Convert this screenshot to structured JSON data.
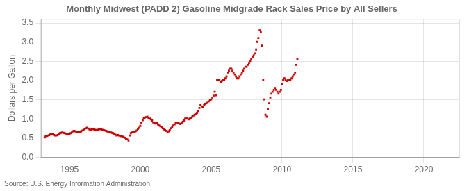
{
  "chart_data": {
    "type": "scatter",
    "title": "Monthly Midwest (PADD 2) Gasoline Midgrade Rack Sales Price by All Sellers",
    "y_label": "Dollars per Gallon",
    "source": "Source: U.S. Energy Information Administration",
    "color": "#cc0000",
    "marker": "square",
    "grid": true,
    "xlim": [
      1993.0,
      2022.5
    ],
    "ylim": [
      0.0,
      3.6
    ],
    "xticks": [
      1995,
      2000,
      2005,
      2010,
      2015,
      2020
    ],
    "yticks": [
      {
        "value": 0.0,
        "label": "0.0"
      },
      0.5,
      {
        "value": 1.0,
        "label": "1.0"
      },
      1.5,
      {
        "value": 2.0,
        "label": "2.0"
      },
      2.5,
      {
        "value": 3.0,
        "label": "3.0"
      },
      3.5
    ],
    "x": [
      1993.25,
      1993.33,
      1993.42,
      1993.5,
      1993.58,
      1993.67,
      1993.75,
      1993.83,
      1993.92,
      1994.0,
      1994.08,
      1994.17,
      1994.25,
      1994.33,
      1994.42,
      1994.5,
      1994.58,
      1994.67,
      1994.75,
      1994.83,
      1994.92,
      1995.0,
      1995.08,
      1995.17,
      1995.25,
      1995.33,
      1995.42,
      1995.5,
      1995.58,
      1995.67,
      1995.75,
      1995.83,
      1995.92,
      1996.0,
      1996.08,
      1996.17,
      1996.25,
      1996.33,
      1996.42,
      1996.5,
      1996.58,
      1996.67,
      1996.75,
      1996.83,
      1996.92,
      1997.0,
      1997.08,
      1997.17,
      1997.25,
      1997.33,
      1997.42,
      1997.5,
      1997.58,
      1997.67,
      1997.75,
      1997.83,
      1997.92,
      1998.0,
      1998.08,
      1998.17,
      1998.25,
      1998.33,
      1998.42,
      1998.5,
      1998.58,
      1998.67,
      1998.75,
      1998.83,
      1998.92,
      1999.0,
      1999.08,
      1999.17,
      1999.25,
      1999.33,
      1999.42,
      1999.5,
      1999.58,
      1999.67,
      1999.75,
      1999.83,
      1999.92,
      2000.0,
      2000.08,
      2000.17,
      2000.25,
      2000.33,
      2000.42,
      2000.5,
      2000.58,
      2000.67,
      2000.75,
      2000.83,
      2000.92,
      2001.0,
      2001.08,
      2001.17,
      2001.25,
      2001.33,
      2001.42,
      2001.5,
      2001.58,
      2001.67,
      2001.75,
      2001.83,
      2001.92,
      2002.0,
      2002.08,
      2002.17,
      2002.25,
      2002.33,
      2002.42,
      2002.5,
      2002.58,
      2002.67,
      2002.75,
      2002.83,
      2002.92,
      2003.0,
      2003.08,
      2003.17,
      2003.25,
      2003.33,
      2003.42,
      2003.5,
      2003.58,
      2003.67,
      2003.75,
      2003.83,
      2003.92,
      2004.0,
      2004.08,
      2004.17,
      2004.25,
      2004.33,
      2004.42,
      2004.5,
      2004.58,
      2004.67,
      2004.75,
      2004.83,
      2004.92,
      2005.0,
      2005.08,
      2005.17,
      2005.25,
      2005.33,
      2005.42,
      2005.5,
      2005.58,
      2005.67,
      2005.75,
      2005.83,
      2005.92,
      2006.0,
      2006.08,
      2006.17,
      2006.25,
      2006.33,
      2006.42,
      2006.5,
      2006.58,
      2006.67,
      2006.75,
      2006.83,
      2006.92,
      2007.0,
      2007.08,
      2007.17,
      2007.25,
      2007.33,
      2007.42,
      2007.5,
      2007.58,
      2007.67,
      2007.75,
      2007.83,
      2007.92,
      2008.0,
      2008.08,
      2008.17,
      2008.25,
      2008.33,
      2008.42,
      2008.5,
      2008.58,
      2008.67,
      2008.75,
      2008.83,
      2008.92,
      2009.0,
      2009.08,
      2009.17,
      2009.25,
      2009.33,
      2009.42,
      2009.5,
      2009.58,
      2009.67,
      2009.75,
      2009.83,
      2009.92,
      2010.0,
      2010.08,
      2010.17,
      2010.25,
      2010.33,
      2010.42,
      2010.5,
      2010.58,
      2010.67,
      2010.75,
      2010.83,
      2010.92,
      2011.0,
      2011.08
    ],
    "values": [
      0.52,
      0.55,
      0.56,
      0.57,
      0.58,
      0.6,
      0.61,
      0.6,
      0.58,
      0.57,
      0.57,
      0.58,
      0.6,
      0.63,
      0.64,
      0.65,
      0.64,
      0.63,
      0.62,
      0.61,
      0.6,
      0.61,
      0.63,
      0.65,
      0.68,
      0.69,
      0.68,
      0.67,
      0.66,
      0.65,
      0.66,
      0.68,
      0.7,
      0.72,
      0.74,
      0.76,
      0.77,
      0.75,
      0.73,
      0.72,
      0.73,
      0.74,
      0.73,
      0.72,
      0.71,
      0.72,
      0.73,
      0.74,
      0.73,
      0.72,
      0.71,
      0.7,
      0.69,
      0.68,
      0.67,
      0.66,
      0.65,
      0.64,
      0.63,
      0.61,
      0.59,
      0.57,
      0.58,
      0.57,
      0.56,
      0.55,
      0.54,
      0.53,
      0.51,
      0.49,
      0.47,
      0.44,
      0.57,
      0.63,
      0.65,
      0.66,
      0.67,
      0.68,
      0.7,
      0.74,
      0.77,
      0.82,
      0.9,
      0.97,
      1.02,
      1.04,
      1.05,
      1.06,
      1.03,
      1.01,
      0.99,
      0.96,
      0.91,
      0.89,
      0.88,
      0.89,
      0.86,
      0.83,
      0.81,
      0.79,
      0.76,
      0.73,
      0.71,
      0.69,
      0.67,
      0.68,
      0.71,
      0.76,
      0.79,
      0.83,
      0.86,
      0.89,
      0.91,
      0.89,
      0.88,
      0.87,
      0.89,
      0.93,
      0.96,
      1.01,
      1.03,
      1.01,
      0.99,
      1.01,
      1.03,
      1.06,
      1.09,
      1.11,
      1.13,
      1.16,
      1.21,
      1.29,
      1.36,
      1.33,
      1.31,
      1.36,
      1.39,
      1.41,
      1.43,
      1.46,
      1.49,
      1.51,
      1.56,
      1.61,
      1.71,
      1.62,
      2.01,
      2.01,
      2.01,
      1.96,
      1.99,
      2.01,
      2.01,
      2.06,
      2.11,
      2.21,
      2.26,
      2.31,
      2.31,
      2.26,
      2.21,
      2.16,
      2.11,
      2.06,
      2.06,
      2.11,
      2.16,
      2.21,
      2.26,
      2.31,
      2.36,
      2.36,
      2.41,
      2.46,
      2.51,
      2.56,
      2.61,
      2.66,
      2.71,
      2.81,
      3.01,
      3.11,
      3.31,
      3.26,
      2.91,
      2.01,
      1.51,
      1.11,
      1.06,
      1.26,
      1.41,
      1.56,
      1.66,
      1.71,
      1.76,
      1.81,
      1.76,
      1.71,
      1.66,
      1.71,
      1.76,
      1.91,
      2.01,
      2.06,
      2.01,
      1.99,
      2.01,
      2.01,
      2.01,
      2.06,
      2.11,
      2.16,
      2.21,
      2.41,
      2.56
    ]
  }
}
